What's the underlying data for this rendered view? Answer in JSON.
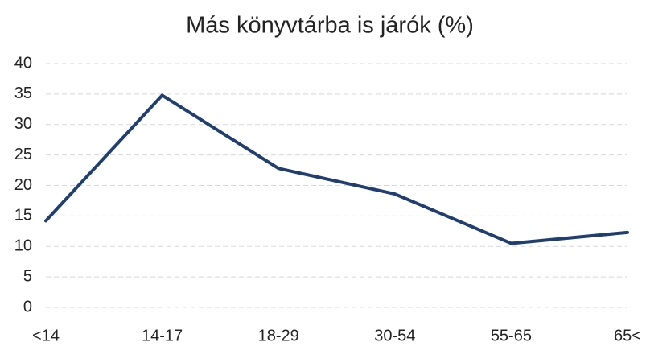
{
  "chart_data": {
    "type": "line",
    "title": "Más könyvtárba is járók (%)",
    "categories": [
      "<14",
      "14-17",
      "18-29",
      "30-54",
      "55-65",
      "65<"
    ],
    "series": [
      {
        "name": "Más könyvtárba is járók",
        "color": "#1f3f73",
        "values": [
          14.2,
          34.8,
          22.8,
          18.6,
          10.5,
          12.3
        ]
      }
    ],
    "ylim": [
      0,
      40
    ],
    "yticks": [
      0,
      5,
      10,
      15,
      20,
      25,
      30,
      35,
      40
    ],
    "grid": true
  }
}
